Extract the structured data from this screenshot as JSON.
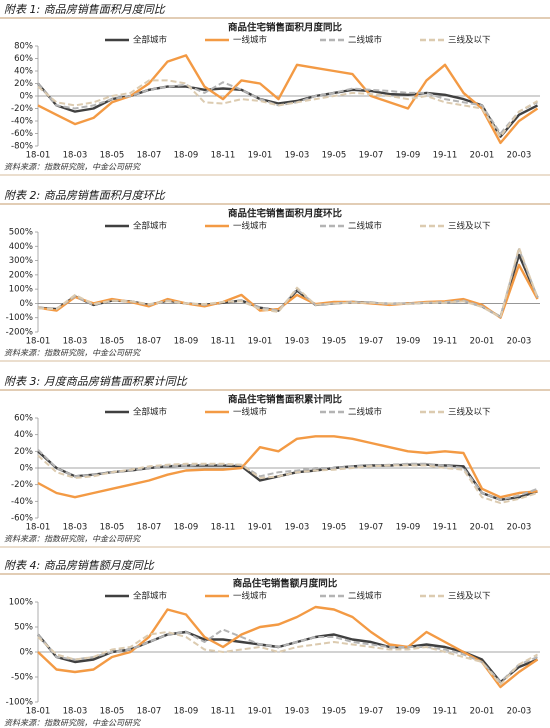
{
  "chart_data": [
    {
      "type": "line",
      "caption": "附表 1: 商品房销售面积月度同比",
      "title": "商品住宅销售面积月度同比",
      "source": "资料来源：指数研究院，中金公司研究",
      "categories": [
        "18-01",
        null,
        "18-03",
        null,
        "18-05",
        null,
        "18-07",
        null,
        "18-09",
        null,
        "18-11",
        null,
        "19-01",
        null,
        "19-03",
        null,
        "19-05",
        null,
        "19-07",
        null,
        "19-09",
        null,
        "19-11",
        null,
        "20-01",
        null,
        "20-03",
        null
      ],
      "ylim": [
        -80,
        80
      ],
      "yticks": [
        {
          "value": 80,
          "label": "80%"
        },
        {
          "value": 60,
          "label": "60%"
        },
        {
          "value": 40,
          "label": "40%"
        },
        {
          "value": 20,
          "label": "20%"
        },
        {
          "value": 0,
          "label": "0%"
        },
        {
          "value": -20,
          "label": "-20%"
        },
        {
          "value": -40,
          "label": "-40%"
        },
        {
          "value": -60,
          "label": "-60%"
        },
        {
          "value": -80,
          "label": "-80%"
        }
      ],
      "grid": false,
      "series": [
        {
          "name": "全部城市",
          "color": "#404040",
          "dashed": false,
          "values": [
            20,
            -15,
            -25,
            -20,
            -5,
            0,
            10,
            15,
            15,
            10,
            12,
            10,
            -5,
            -12,
            -8,
            0,
            5,
            10,
            8,
            3,
            2,
            5,
            2,
            -5,
            -15,
            -65,
            -30,
            -15
          ]
        },
        {
          "name": "一线城市",
          "color": "#f39a44",
          "dashed": false,
          "values": [
            -15,
            -30,
            -45,
            -35,
            -10,
            0,
            20,
            55,
            65,
            15,
            -5,
            25,
            20,
            -5,
            50,
            45,
            40,
            35,
            0,
            -10,
            -20,
            25,
            50,
            5,
            -20,
            -75,
            -40,
            -20
          ]
        },
        {
          "name": "二线城市",
          "color": "#b4b4b4",
          "dashed": true,
          "values": [
            20,
            -15,
            -20,
            -15,
            -5,
            0,
            10,
            15,
            18,
            5,
            22,
            10,
            -5,
            -15,
            -10,
            0,
            5,
            12,
            10,
            8,
            5,
            5,
            -5,
            -10,
            -15,
            -60,
            -25,
            -10
          ]
        },
        {
          "name": "三线及以下",
          "color": "#dccbb0",
          "dashed": true,
          "values": [
            15,
            -10,
            -15,
            -10,
            0,
            5,
            25,
            25,
            20,
            -10,
            -12,
            -5,
            -8,
            -15,
            -10,
            -5,
            0,
            5,
            3,
            0,
            -5,
            0,
            -10,
            -15,
            -20,
            -65,
            -25,
            -8
          ]
        }
      ]
    },
    {
      "type": "line",
      "caption": "附表 2: 商品房销售面积月度环比",
      "title": "商品住宅销售面积月度环比",
      "source": "资料来源：指数研究院，中金公司研究",
      "categories": [
        "18-01",
        null,
        "18-03",
        null,
        "18-05",
        null,
        "18-07",
        null,
        "18-09",
        null,
        "18-11",
        null,
        "19-01",
        null,
        "19-03",
        null,
        "19-05",
        null,
        "19-07",
        null,
        "19-09",
        null,
        "19-11",
        null,
        "20-01",
        null,
        "20-03",
        null
      ],
      "ylim": [
        -200,
        500
      ],
      "yticks": [
        {
          "value": 500,
          "label": "500%"
        },
        {
          "value": 400,
          "label": "400%"
        },
        {
          "value": 300,
          "label": "300%"
        },
        {
          "value": 200,
          "label": "200%"
        },
        {
          "value": 100,
          "label": "100%"
        },
        {
          "value": 0,
          "label": "0%"
        },
        {
          "value": -100,
          "label": "-100%"
        },
        {
          "value": -200,
          "label": "-200%"
        }
      ],
      "grid": false,
      "series": [
        {
          "name": "全部城市",
          "color": "#404040",
          "dashed": false,
          "values": [
            -30,
            -40,
            50,
            -10,
            20,
            15,
            -10,
            20,
            0,
            -10,
            5,
            20,
            -30,
            -50,
            90,
            -10,
            0,
            10,
            5,
            -5,
            0,
            5,
            10,
            20,
            -20,
            -95,
            340,
            40
          ]
        },
        {
          "name": "一线城市",
          "color": "#f39a44",
          "dashed": false,
          "values": [
            -30,
            -50,
            45,
            0,
            30,
            10,
            -20,
            30,
            0,
            -20,
            10,
            60,
            -50,
            -40,
            60,
            -5,
            10,
            10,
            0,
            -10,
            0,
            10,
            15,
            30,
            -10,
            -100,
            270,
            30
          ]
        },
        {
          "name": "二线城市",
          "color": "#b4b4b4",
          "dashed": true,
          "values": [
            -30,
            -40,
            50,
            -10,
            20,
            15,
            -10,
            20,
            0,
            -10,
            10,
            20,
            -30,
            -50,
            100,
            -10,
            0,
            10,
            5,
            -5,
            0,
            5,
            10,
            20,
            -20,
            -95,
            380,
            40
          ]
        },
        {
          "name": "三线及以下",
          "color": "#dccbb0",
          "dashed": true,
          "values": [
            -35,
            -40,
            60,
            -5,
            20,
            15,
            -5,
            15,
            0,
            -5,
            10,
            15,
            -40,
            -60,
            110,
            -10,
            0,
            5,
            5,
            0,
            -5,
            5,
            5,
            15,
            -25,
            -95,
            390,
            40
          ]
        }
      ]
    },
    {
      "type": "line",
      "caption": "附表 3: 月度商品房销售面积累计同比",
      "title": "商品住宅销售面积累计同比",
      "source": "资料来源：指数研究院，中金公司研究",
      "categories": [
        "18-01",
        null,
        "18-03",
        null,
        "18-05",
        null,
        "18-07",
        null,
        "18-09",
        null,
        "18-11",
        null,
        "19-01",
        null,
        "19-03",
        null,
        "19-05",
        null,
        "19-07",
        null,
        "19-09",
        null,
        "19-11",
        null,
        "20-01",
        null,
        "20-03",
        null
      ],
      "ylim": [
        -60,
        60
      ],
      "yticks": [
        {
          "value": 60,
          "label": "60%"
        },
        {
          "value": 40,
          "label": "40%"
        },
        {
          "value": 20,
          "label": "20%"
        },
        {
          "value": 0,
          "label": "0%"
        },
        {
          "value": -20,
          "label": "-20%"
        },
        {
          "value": -40,
          "label": "-40%"
        },
        {
          "value": -60,
          "label": "-60%"
        }
      ],
      "grid": false,
      "series": [
        {
          "name": "全部城市",
          "color": "#404040",
          "dashed": false,
          "values": [
            20,
            0,
            -10,
            -8,
            -5,
            -3,
            0,
            2,
            3,
            3,
            3,
            2,
            -15,
            -10,
            -5,
            -3,
            0,
            2,
            3,
            3,
            4,
            4,
            3,
            2,
            -30,
            -38,
            -35,
            -28
          ]
        },
        {
          "name": "一线城市",
          "color": "#f39a44",
          "dashed": false,
          "values": [
            -18,
            -30,
            -35,
            -30,
            -25,
            -20,
            -15,
            -8,
            -3,
            -2,
            -2,
            0,
            25,
            20,
            35,
            38,
            38,
            35,
            30,
            25,
            20,
            18,
            20,
            18,
            -25,
            -35,
            -30,
            -28
          ]
        },
        {
          "name": "二线城市",
          "color": "#b4b4b4",
          "dashed": true,
          "values": [
            22,
            0,
            -10,
            -8,
            -5,
            -3,
            0,
            2,
            3,
            4,
            4,
            4,
            -10,
            -5,
            -3,
            0,
            0,
            2,
            3,
            4,
            5,
            5,
            3,
            0,
            -30,
            -38,
            -33,
            -25
          ]
        },
        {
          "name": "三线及以下",
          "color": "#dccbb0",
          "dashed": true,
          "values": [
            15,
            -5,
            -12,
            -10,
            -5,
            -2,
            2,
            4,
            5,
            5,
            5,
            4,
            -12,
            -10,
            -5,
            -3,
            -2,
            0,
            2,
            3,
            3,
            3,
            0,
            -2,
            -35,
            -42,
            -37,
            -30
          ]
        }
      ]
    },
    {
      "type": "line",
      "caption": "附表 4: 商品房销售额月度同比",
      "title": "商品住宅销售额月度同比",
      "source": "资料来源：指数研究院，中金公司研究",
      "categories": [
        "18-01",
        null,
        "18-03",
        null,
        "18-05",
        null,
        "18-07",
        null,
        "18-09",
        null,
        "18-11",
        null,
        "19-01",
        null,
        "19-03",
        null,
        "19-05",
        null,
        "19-07",
        null,
        "19-09",
        null,
        "19-11",
        null,
        "20-01",
        null,
        "20-03",
        null
      ],
      "ylim": [
        -100,
        100
      ],
      "yticks": [
        {
          "value": 100,
          "label": "100%"
        },
        {
          "value": 50,
          "label": "50%"
        },
        {
          "value": 0,
          "label": "0%"
        },
        {
          "value": -50,
          "label": "-50%"
        },
        {
          "value": -100,
          "label": "-100%"
        }
      ],
      "grid": false,
      "series": [
        {
          "name": "全部城市",
          "color": "#404040",
          "dashed": false,
          "values": [
            35,
            -10,
            -20,
            -15,
            0,
            5,
            20,
            35,
            40,
            25,
            25,
            20,
            15,
            10,
            20,
            30,
            35,
            25,
            20,
            10,
            10,
            15,
            10,
            0,
            -15,
            -60,
            -30,
            -15
          ]
        },
        {
          "name": "一线城市",
          "color": "#f39a44",
          "dashed": false,
          "values": [
            0,
            -35,
            -40,
            -35,
            -10,
            0,
            30,
            85,
            75,
            30,
            10,
            35,
            50,
            55,
            70,
            90,
            85,
            70,
            40,
            15,
            10,
            40,
            20,
            0,
            -20,
            -70,
            -40,
            -15
          ]
        },
        {
          "name": "二线城市",
          "color": "#b4b4b4",
          "dashed": true,
          "values": [
            35,
            -10,
            -15,
            -10,
            0,
            5,
            20,
            35,
            40,
            20,
            45,
            30,
            15,
            10,
            20,
            30,
            30,
            20,
            15,
            10,
            10,
            10,
            5,
            -5,
            -20,
            -60,
            -25,
            -10
          ]
        },
        {
          "name": "三线及以下",
          "color": "#dccbb0",
          "dashed": true,
          "values": [
            30,
            -5,
            -15,
            -10,
            5,
            10,
            35,
            40,
            30,
            5,
            0,
            5,
            10,
            0,
            10,
            15,
            20,
            15,
            10,
            5,
            5,
            10,
            0,
            -10,
            -20,
            -65,
            -25,
            -5
          ]
        }
      ]
    }
  ]
}
